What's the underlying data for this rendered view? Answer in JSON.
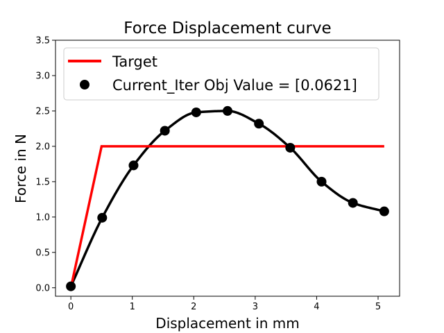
{
  "chart_data": {
    "type": "line",
    "title": "Force Displacement curve",
    "xlabel": "Displacement in mm",
    "ylabel": "Force in N",
    "xlim": [
      -0.25,
      5.35
    ],
    "ylim": [
      -0.12,
      3.5
    ],
    "xticks": [
      0,
      1,
      2,
      3,
      4,
      5
    ],
    "yticks": [
      0.0,
      0.5,
      1.0,
      1.5,
      2.0,
      2.5,
      3.0,
      3.5
    ],
    "xtick_labels": [
      "0",
      "1",
      "2",
      "3",
      "4",
      "5"
    ],
    "ytick_labels": [
      "0.0",
      "0.5",
      "1.0",
      "1.5",
      "2.0",
      "2.5",
      "3.0",
      "3.5"
    ],
    "grid": false,
    "legend_position": "top-left",
    "series": [
      {
        "name": "Target",
        "kind": "line",
        "color": "#ff0000",
        "x": [
          0,
          0.5,
          5.1
        ],
        "y": [
          0,
          2.0,
          2.0
        ]
      },
      {
        "name": "Current_Iter Obj Value = [0.0621]",
        "kind": "markers",
        "color": "#000000",
        "x": [
          0,
          0.51,
          1.02,
          1.53,
          2.04,
          2.55,
          3.06,
          3.57,
          4.08,
          4.59,
          5.1
        ],
        "y": [
          0.02,
          0.99,
          1.73,
          2.22,
          2.48,
          2.5,
          2.32,
          1.98,
          1.5,
          1.2,
          1.08
        ]
      },
      {
        "name": "",
        "kind": "smooth-line",
        "color": "#000000",
        "x": [
          0,
          0.51,
          1.02,
          1.53,
          2.04,
          2.55,
          3.06,
          3.57,
          4.08,
          4.59,
          5.1
        ],
        "y": [
          0.02,
          0.99,
          1.73,
          2.22,
          2.48,
          2.5,
          2.32,
          1.98,
          1.5,
          1.2,
          1.08
        ]
      }
    ]
  }
}
